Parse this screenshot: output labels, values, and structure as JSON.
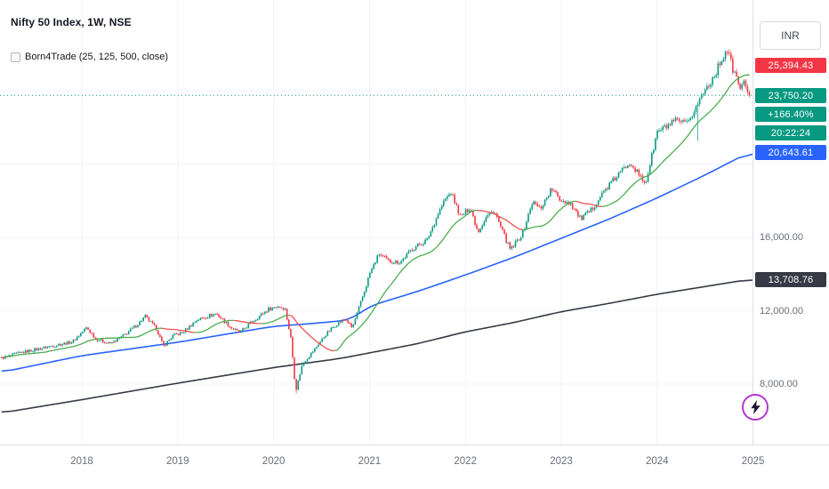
{
  "header": {
    "symbol_line": "Nifty 50 Index, 1W, NSE",
    "indicator_line": "Born4Trade (25, 125, 500, close)"
  },
  "axis": {
    "currency": "INR",
    "y_ticks": [
      {
        "value": 16000,
        "label": "16,000.00"
      },
      {
        "value": 12000,
        "label": "12,000.00"
      },
      {
        "value": 8000,
        "label": "8,000.00"
      }
    ],
    "x_ticks": [
      {
        "value": 2018,
        "label": "2018"
      },
      {
        "value": 2019,
        "label": "2019"
      },
      {
        "value": 2020,
        "label": "2020"
      },
      {
        "value": 2021,
        "label": "2021"
      },
      {
        "value": 2022,
        "label": "2022"
      },
      {
        "value": 2023,
        "label": "2023"
      },
      {
        "value": 2024,
        "label": "2024"
      },
      {
        "value": 2025,
        "label": "2025"
      }
    ],
    "badges": {
      "upper": {
        "label": "25,394.43",
        "price": 25394.43,
        "color": "#f23645"
      },
      "last": {
        "label": "23,750.20",
        "price": 23750.2,
        "color": "#089981"
      },
      "change": {
        "label": "+166.40%",
        "color": "#089981"
      },
      "countdown": {
        "label": "20:22:24",
        "color": "#089981"
      },
      "ma125": {
        "label": "20,643.61",
        "price": 20643.61,
        "color": "#2962ff"
      },
      "ma500": {
        "label": "13,708.76",
        "price": 13708.76,
        "color": "#363a45"
      }
    }
  },
  "widgets": {
    "boost": {
      "icon": "lightning-icon",
      "ring_color": "#b438cf",
      "bolt_color": "#1d1430"
    }
  },
  "chart_data": {
    "type": "candlestick",
    "title": "Nifty 50 Index, 1W, NSE",
    "timeframe": "1W",
    "exchange": "NSE",
    "indicator": "Born4Trade (25, 125, 500, close)",
    "x_domain": [
      2017.163,
      2024.962
    ],
    "x_ticks": [
      2018,
      2019,
      2020,
      2021,
      2022,
      2023,
      2024,
      2025
    ],
    "y_ticks": [
      8000,
      12000,
      16000
    ],
    "ylim": [
      4700,
      28900
    ],
    "last_price": 23750.2,
    "change_percent": "+166.40%",
    "bar_countdown": "20:22:24",
    "ma_periods": [
      25,
      125,
      500
    ],
    "close_anchors": [
      [
        2017.163,
        9420
      ],
      [
        2017.35,
        9700
      ],
      [
        2017.6,
        9980
      ],
      [
        2017.75,
        10150
      ],
      [
        2017.9,
        10300
      ],
      [
        2018.05,
        11080
      ],
      [
        2018.15,
        10450
      ],
      [
        2018.3,
        10200
      ],
      [
        2018.45,
        10700
      ],
      [
        2018.6,
        11350
      ],
      [
        2018.66,
        11700
      ],
      [
        2018.78,
        11000
      ],
      [
        2018.85,
        10050
      ],
      [
        2018.95,
        10650
      ],
      [
        2019.05,
        10800
      ],
      [
        2019.2,
        11500
      ],
      [
        2019.4,
        11850
      ],
      [
        2019.55,
        11100
      ],
      [
        2019.65,
        10800
      ],
      [
        2019.75,
        11300
      ],
      [
        2019.95,
        12100
      ],
      [
        2020.05,
        12250
      ],
      [
        2020.12,
        12100
      ],
      [
        2020.18,
        10500
      ],
      [
        2020.23,
        7610
      ],
      [
        2020.3,
        9100
      ],
      [
        2020.42,
        9850
      ],
      [
        2020.55,
        10750
      ],
      [
        2020.65,
        11250
      ],
      [
        2020.75,
        11550
      ],
      [
        2020.82,
        11050
      ],
      [
        2020.95,
        13100
      ],
      [
        2021.0,
        14000
      ],
      [
        2021.1,
        15100
      ],
      [
        2021.2,
        14700
      ],
      [
        2021.32,
        14650
      ],
      [
        2021.45,
        15400
      ],
      [
        2021.6,
        15850
      ],
      [
        2021.72,
        17350
      ],
      [
        2021.78,
        18000
      ],
      [
        2021.85,
        18450
      ],
      [
        2021.95,
        17100
      ],
      [
        2022.05,
        17650
      ],
      [
        2022.13,
        16300
      ],
      [
        2022.22,
        17150
      ],
      [
        2022.3,
        17450
      ],
      [
        2022.38,
        16400
      ],
      [
        2022.47,
        15300
      ],
      [
        2022.6,
        16250
      ],
      [
        2022.7,
        17950
      ],
      [
        2022.78,
        17550
      ],
      [
        2022.9,
        18650
      ],
      [
        2022.98,
        18100
      ],
      [
        2023.1,
        17850
      ],
      [
        2023.2,
        17000
      ],
      [
        2023.3,
        17400
      ],
      [
        2023.45,
        18550
      ],
      [
        2023.6,
        19450
      ],
      [
        2023.72,
        20150
      ],
      [
        2023.82,
        19300
      ],
      [
        2023.88,
        18950
      ],
      [
        2024.0,
        21750
      ],
      [
        2024.1,
        22050
      ],
      [
        2024.2,
        22350
      ],
      [
        2024.32,
        22150
      ],
      [
        2024.42,
        23300
      ],
      [
        2024.5,
        24050
      ],
      [
        2024.6,
        24850
      ],
      [
        2024.68,
        25800
      ],
      [
        2024.73,
        26250
      ],
      [
        2024.8,
        25000
      ],
      [
        2024.87,
        24150
      ],
      [
        2024.92,
        24450
      ],
      [
        2024.962,
        23750.2
      ]
    ],
    "wick_events": [
      {
        "t": 2020.23,
        "low": 7511.1
      },
      {
        "t": 2024.42,
        "low": 21281.45
      }
    ],
    "ma125_anchors": [
      [
        2017.163,
        8650
      ],
      [
        2018,
        9550
      ],
      [
        2019,
        10280
      ],
      [
        2020,
        11150
      ],
      [
        2020.4,
        11300
      ],
      [
        2020.8,
        11500
      ],
      [
        2021,
        12250
      ],
      [
        2021.5,
        13050
      ],
      [
        2022,
        13950
      ],
      [
        2022.5,
        14900
      ],
      [
        2023,
        15950
      ],
      [
        2023.5,
        17000
      ],
      [
        2024,
        18150
      ],
      [
        2024.5,
        19400
      ],
      [
        2024.962,
        20643.61
      ]
    ],
    "ma500_anchors": [
      [
        2017.163,
        6430
      ],
      [
        2018,
        7150
      ],
      [
        2019,
        8050
      ],
      [
        2020,
        8900
      ],
      [
        2020.7,
        9400
      ],
      [
        2021,
        9700
      ],
      [
        2021.5,
        10200
      ],
      [
        2022,
        10850
      ],
      [
        2022.5,
        11350
      ],
      [
        2023,
        11950
      ],
      [
        2023.5,
        12400
      ],
      [
        2024,
        12900
      ],
      [
        2024.5,
        13320
      ],
      [
        2024.962,
        13708.76
      ]
    ],
    "colors": {
      "up": "#089981",
      "down": "#f23645",
      "ma_fast_up": "#4caf50",
      "ma_fast_down": "#ef5350",
      "ma_mid": "#2962ff",
      "ma_slow": "#363a45",
      "last_price_line": "#089981",
      "grid": "#f0f3fa"
    }
  }
}
